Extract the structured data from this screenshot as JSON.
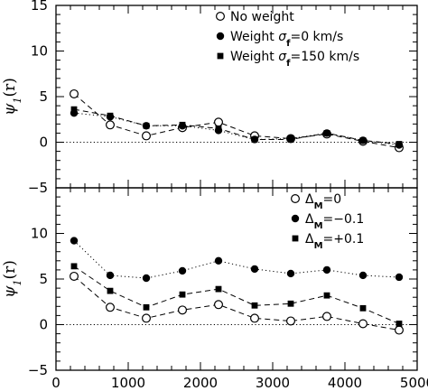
{
  "chart_data": [
    {
      "type": "line",
      "panel": "top",
      "ylabel": "ψ1(r)",
      "ylim": [
        -5,
        15
      ],
      "xlim": [
        0,
        5000
      ],
      "yticks": [
        -5,
        0,
        5,
        10,
        15
      ],
      "x": [
        250,
        750,
        1250,
        1750,
        2250,
        2750,
        3250,
        3750,
        4250,
        4750
      ],
      "baseline": 0,
      "legend_position": "top-right",
      "series": [
        {
          "name": "No weight",
          "marker": "open-circle",
          "line": "dashed",
          "values": [
            5.3,
            1.9,
            0.7,
            1.6,
            2.2,
            0.7,
            0.4,
            0.9,
            0.1,
            -0.6
          ]
        },
        {
          "name": "Weight σf=0 km/s",
          "marker": "filled-circle",
          "line": "dotted",
          "values": [
            3.2,
            2.8,
            1.8,
            1.8,
            1.3,
            0.3,
            0.4,
            1.0,
            0.2,
            -0.3
          ]
        },
        {
          "name": "Weight σf=150 km/s",
          "marker": "filled-square",
          "line": "dashed",
          "values": [
            3.6,
            2.9,
            1.8,
            1.9,
            1.5,
            0.3,
            0.3,
            1.0,
            0.2,
            -0.2
          ]
        }
      ]
    },
    {
      "type": "line",
      "panel": "bottom",
      "ylabel": "ψ1(r)",
      "ylim": [
        -5,
        15
      ],
      "xlim": [
        0,
        5000
      ],
      "yticks": [
        -5,
        0,
        5,
        10
      ],
      "xticks": [
        0,
        1000,
        2000,
        3000,
        4000,
        5000
      ],
      "x": [
        250,
        750,
        1250,
        1750,
        2250,
        2750,
        3250,
        3750,
        4250,
        4750
      ],
      "baseline": 0,
      "legend_position": "top-right",
      "series": [
        {
          "name": "ΔM=0",
          "marker": "open-circle",
          "line": "dashed",
          "values": [
            5.3,
            1.9,
            0.7,
            1.6,
            2.2,
            0.7,
            0.4,
            0.9,
            0.1,
            -0.6
          ]
        },
        {
          "name": "ΔM=−0.1",
          "marker": "filled-circle",
          "line": "dotted",
          "values": [
            9.2,
            5.4,
            5.1,
            5.9,
            7.0,
            6.1,
            5.6,
            6.0,
            5.4,
            5.2
          ]
        },
        {
          "name": "ΔM=+0.1",
          "marker": "filled-square",
          "line": "dashed",
          "values": [
            6.4,
            3.7,
            1.9,
            3.3,
            3.9,
            2.1,
            2.3,
            3.2,
            1.8,
            0.1
          ]
        }
      ]
    }
  ],
  "colors": {
    "ink": "#000000",
    "background": "#ffffff"
  }
}
